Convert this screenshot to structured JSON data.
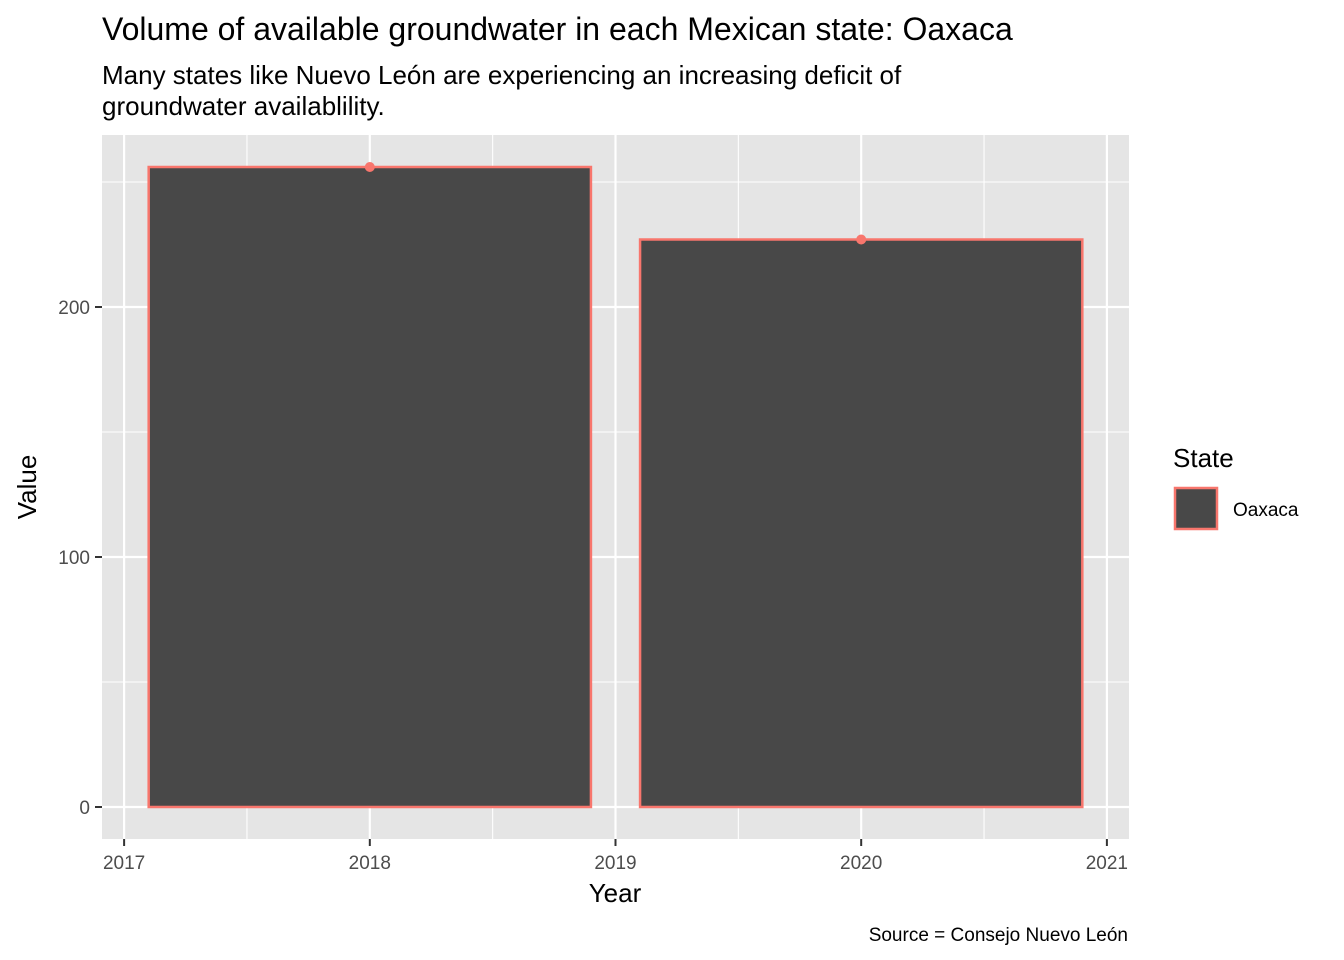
{
  "chart_data": {
    "type": "bar",
    "title": "Volume of available groundwater in each Mexican state: Oaxaca",
    "subtitle_lines": [
      "Many states like Nuevo León are experiencing an increasing deficit of",
      "groundwater availablility."
    ],
    "xlabel": "Year",
    "ylabel": "Value",
    "caption": "Source = Consejo Nuevo León",
    "x_ticks": [
      "2017",
      "2018",
      "2019",
      "2020",
      "2021"
    ],
    "y_ticks": [
      "0",
      "100",
      "200"
    ],
    "xlim": [
      2016.91,
      2021.09
    ],
    "ylim": [
      -12.8,
      268.8
    ],
    "series": [
      {
        "name": "Oaxaca",
        "x": [
          2018,
          2020
        ],
        "values": [
          256,
          227
        ]
      }
    ],
    "bar_width_years": 1.8,
    "legend": {
      "title": "State",
      "position": "right"
    },
    "grid": true,
    "colors": {
      "panel": "#e5e5e5",
      "grid": "#ffffff",
      "bar_fill": "#484848",
      "bar_outline": "#f8766d",
      "point": "#f8766d"
    }
  }
}
